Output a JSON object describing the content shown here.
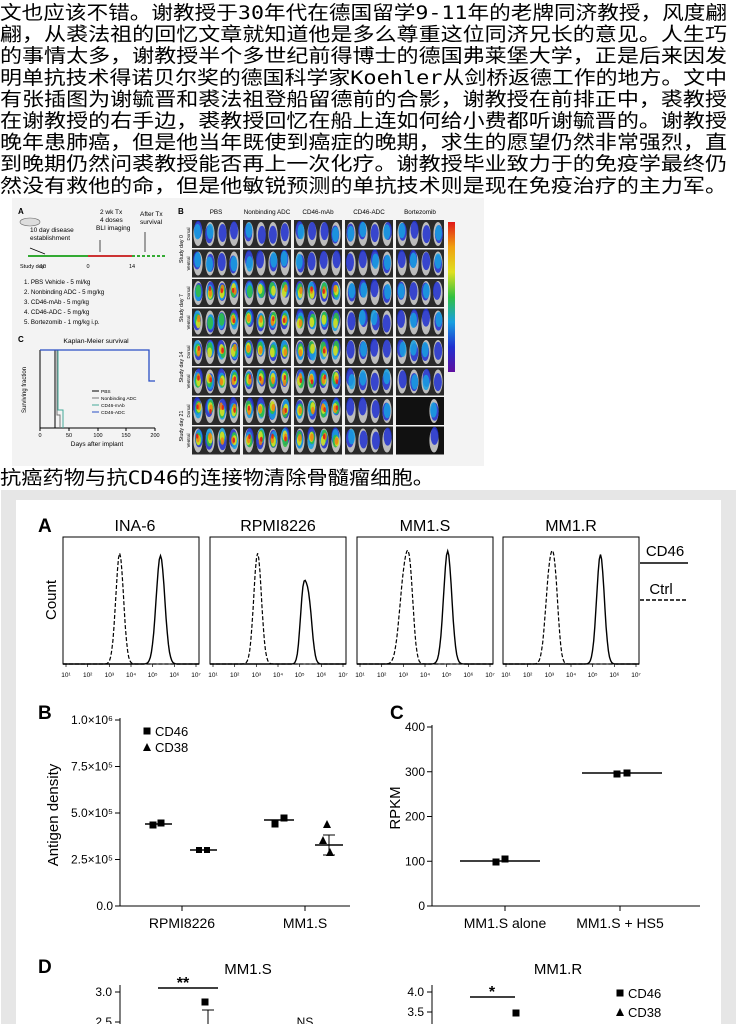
{
  "paragraph_lines": [
    "文也应该不错。谢教授于30年代在德国留学9-11年的老牌同济教授，风度翩",
    "翩，从裘法祖的回忆文章就知道他是多么尊重这位同济兄长的意见。人生巧",
    "的事情太多，谢教授半个多世纪前得博士的德国弗莱堡大学，正是后来因发",
    "明单抗技术得诺贝尔奖的德国科学家Koehler从剑桥返德工作的地方。文中",
    "有张插图为谢毓晋和裘法祖登船留德前的合影，谢教授在前排正中，裘教授",
    "在谢教授的右手边，裘教授回忆在船上连如何给小费都听谢毓晋的。谢教授",
    "晚年患肺癌，但是他当年既使到癌症的晚期，求生的愿望仍然非常强烈，直",
    "到晚期仍然问裘教授能否再上一次化疗。谢教授毕业致力于的免疫学最终仍",
    "然没有救他的命，但是他敏锐预测的单抗技术则是现在免疫治疗的主力军。"
  ],
  "figure1": {
    "a_label": "A",
    "b_label": "B",
    "c_label": "C",
    "timeline": [
      "10 day disease",
      "establishment",
      "2 wk Tx",
      "4 doses",
      "BLI imaging",
      "After Tx",
      "survival"
    ],
    "study_day": [
      "Study day:",
      "-10",
      "0",
      "14"
    ],
    "treatments": [
      "1. PBS Vehicle - 5 ml/kg",
      "2. Nonbinding ADC - 5 mg/kg",
      "3. CD46-mAb - 5 mg/kg",
      "4. CD46-ADC - 5 mg/kg",
      "5. Bortezomib - 1 mg/kg i.p."
    ],
    "columns": [
      "PBS",
      "Nonbinding ADC",
      "CD46-mAb",
      "CD46-ADC",
      "Bortezomib"
    ],
    "rows": [
      "Study day 0",
      "Study day 7",
      "Study day 14",
      "Study day 21"
    ],
    "views": [
      "Dorsal",
      "Ventral"
    ],
    "km_title": "Kaplan-Meier survival",
    "km_ylabel": "Surviving fraction",
    "km_xlabel": "Days after implant",
    "km_xticks": [
      "0",
      "50",
      "100",
      "150",
      "200"
    ],
    "km_legend": [
      "PBS",
      "Nonbinding ADC",
      "CD46-mAb",
      "CD46-ADC"
    ]
  },
  "caption": "抗癌药物与抗CD46的连接物清除骨髓瘤细胞。",
  "figure2": {
    "a": {
      "label": "A",
      "titles": [
        "INA-6",
        "RPMI8226",
        "MM1.S",
        "MM1.R"
      ],
      "xticks": [
        "10¹",
        "10²",
        "10³",
        "10⁴",
        "10⁵",
        "10⁶",
        "10⁷"
      ],
      "ylabel": "Count",
      "legend": [
        "CD46",
        "Ctrl"
      ]
    },
    "b": {
      "label": "B",
      "ylabel": "Antigen density",
      "yticks": [
        "1.0×10⁶",
        "7.5×10⁵",
        "5.0×10⁵",
        "2.5×10⁵",
        "0.0"
      ],
      "categories": [
        "RPMI8226",
        "MM1.S"
      ],
      "legend": [
        "CD46",
        "CD38"
      ]
    },
    "c": {
      "label": "C",
      "ylabel": "RPKM",
      "yticks": [
        "400",
        "300",
        "200",
        "100",
        "0"
      ],
      "categories": [
        "MM1.S alone",
        "MM1.S + HS5"
      ]
    },
    "d": {
      "label": "D",
      "left": {
        "title": "MM1.S",
        "yticks": [
          "3.0",
          "2.5"
        ],
        "significance": "**",
        "ns": "NS"
      },
      "right": {
        "title": "MM1.R",
        "yticks": [
          "4.0",
          "3.5"
        ],
        "significance": "*",
        "legend": [
          "CD46",
          "CD38"
        ]
      }
    }
  }
}
